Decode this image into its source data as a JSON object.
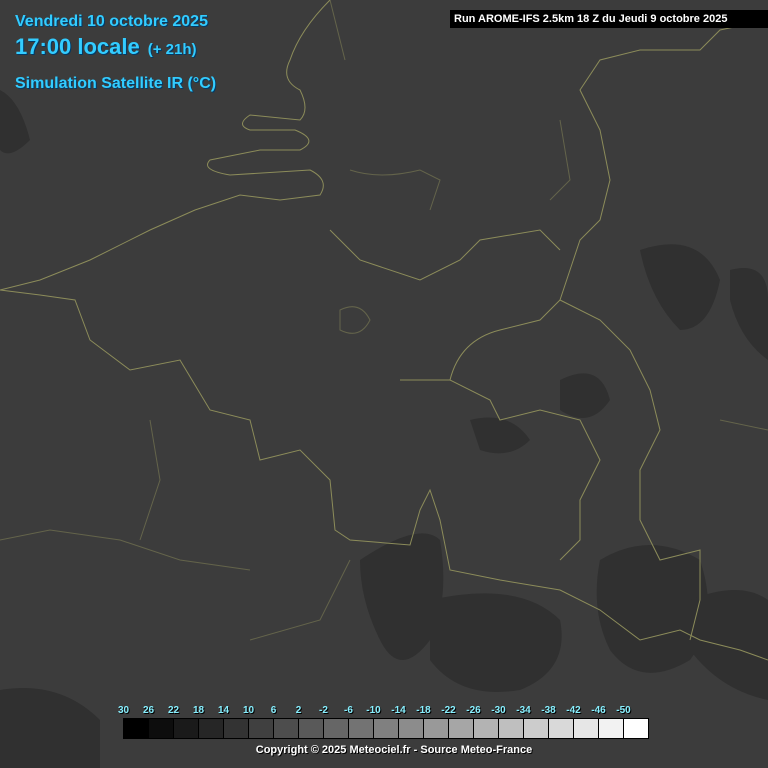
{
  "header": {
    "date": "Vendredi 10 octobre 2025",
    "time": "17:00 locale",
    "offset": "(+ 21h)",
    "product": "Simulation Satellite IR (°C)",
    "run": "Run AROME-IFS 2.5km 18 Z du Jeudi 9 octobre 2025"
  },
  "legend": {
    "labels": [
      "30",
      "26",
      "22",
      "18",
      "14",
      "10",
      "6",
      "2",
      "-2",
      "-6",
      "-10",
      "-14",
      "-18",
      "-22",
      "-26",
      "-30",
      "-34",
      "-38",
      "-42",
      "-46",
      "-50"
    ],
    "colors": [
      "#000000",
      "#0d0d0d",
      "#1a1a1a",
      "#262626",
      "#333333",
      "#404040",
      "#4d4d4d",
      "#595959",
      "#666666",
      "#737373",
      "#808080",
      "#8c8c8c",
      "#999999",
      "#a6a6a6",
      "#b3b3b3",
      "#bfbfbf",
      "#cccccc",
      "#d9d9d9",
      "#e6e6e6",
      "#f2f2f2",
      "#ffffff"
    ]
  },
  "copyright": "Copyright © 2025 Meteociel.fr - Source Meteo-France",
  "colors": {
    "background": "#3c3c3c",
    "borders": "#8c8c5a",
    "title_text": "#33ccff"
  }
}
